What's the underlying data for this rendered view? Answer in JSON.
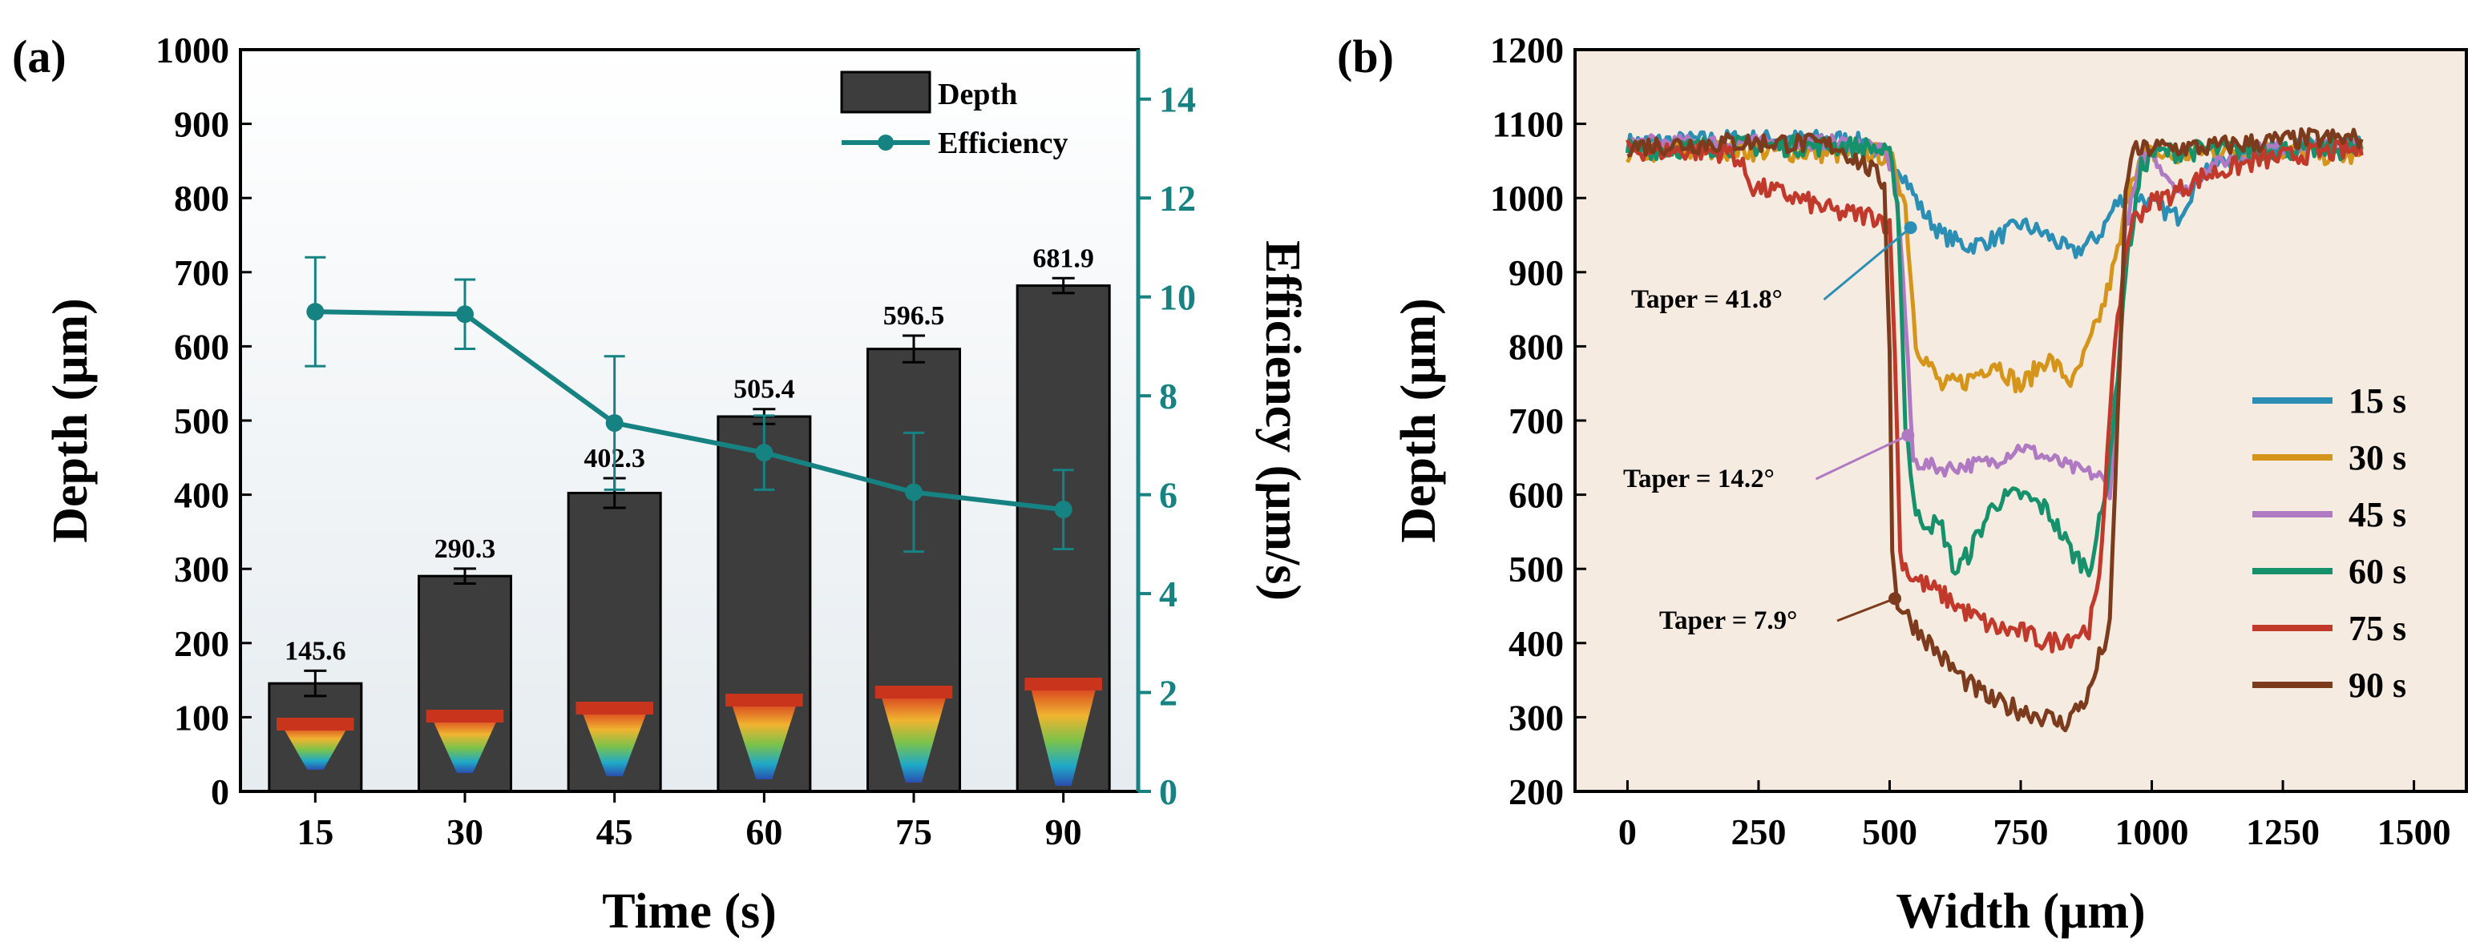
{
  "chart_data": [
    {
      "panel_label": "(a)",
      "type": "bar",
      "categories": [
        "15",
        "30",
        "45",
        "60",
        "75",
        "90"
      ],
      "series": [
        {
          "name": "Depth",
          "type": "bar",
          "axis": "left",
          "values": [
            145.6,
            290.3,
            402.3,
            505.4,
            596.5,
            681.9
          ],
          "errors": [
            17,
            10,
            20,
            10,
            18,
            10
          ],
          "value_labels": [
            "145.6",
            "290.3",
            "402.3",
            "505.4",
            "596.5",
            "681.9"
          ],
          "color": "#3d3d3d"
        },
        {
          "name": "Efficiency",
          "type": "line",
          "axis": "right",
          "values": [
            9.7,
            9.65,
            7.45,
            6.85,
            6.05,
            5.7
          ],
          "errors": [
            1.1,
            0.7,
            1.35,
            0.75,
            1.2,
            0.8
          ],
          "color": "#178282"
        }
      ],
      "xlabel": "Time (s)",
      "ylabel": "Depth (μm)",
      "y2label": "Efficiency (μm/s)",
      "ylim": [
        0,
        1000
      ],
      "y2lim": [
        0,
        15
      ],
      "yticks": [
        "0",
        "100",
        "200",
        "300",
        "400",
        "500",
        "600",
        "700",
        "800",
        "900",
        "1000"
      ],
      "y2ticks": [
        "0",
        "2",
        "4",
        "6",
        "8",
        "10",
        "12",
        "14"
      ],
      "legend": [
        "Depth",
        "Efficiency"
      ],
      "legend_position": "top-right"
    },
    {
      "panel_label": "(b)",
      "type": "line",
      "xlabel": "Width (μm)",
      "ylabel": "Depth (μm)",
      "xlim": [
        -100,
        1600
      ],
      "ylim": [
        200,
        1200
      ],
      "xticks": [
        "0",
        "250",
        "500",
        "750",
        "1000",
        "1250",
        "1500"
      ],
      "yticks": [
        "200",
        "300",
        "400",
        "500",
        "600",
        "700",
        "800",
        "900",
        "1000",
        "1100",
        "1200"
      ],
      "legend_position": "right",
      "series": [
        {
          "name": "15 s",
          "color": "#2b8fb5",
          "noise": 12,
          "bottom": 950,
          "x": [
            0,
            200,
            400,
            450,
            520,
            560,
            600,
            650,
            700,
            750,
            800,
            850,
            900,
            930,
            960,
            1000,
            1050,
            1100,
            1200,
            1300,
            1400
          ],
          "y": [
            1075,
            1080,
            1080,
            1075,
            1040,
            985,
            950,
            935,
            945,
            965,
            950,
            925,
            950,
            990,
            1010,
            990,
            975,
            1040,
            1065,
            1070,
            1070
          ]
        },
        {
          "name": "30 s",
          "color": "#d4951a",
          "noise": 14,
          "bottom": 760,
          "x": [
            0,
            200,
            400,
            480,
            510,
            530,
            550,
            600,
            650,
            700,
            750,
            800,
            850,
            880,
            910,
            940,
            960,
            990,
            1050,
            1100,
            1200,
            1300,
            1400
          ],
          "y": [
            1060,
            1065,
            1060,
            1060,
            1045,
            990,
            805,
            745,
            755,
            780,
            745,
            785,
            750,
            800,
            860,
            940,
            1030,
            1060,
            1055,
            1065,
            1065,
            1060,
            1055
          ]
        },
        {
          "name": "45 s",
          "color": "#b07ac2",
          "noise": 10,
          "bottom": 645,
          "x": [
            0,
            200,
            400,
            460,
            490,
            510,
            525,
            545,
            600,
            650,
            700,
            750,
            800,
            850,
            900,
            920,
            935,
            950,
            980,
            1000,
            1030,
            1060,
            1100,
            1200,
            1300,
            1400
          ],
          "y": [
            1075,
            1075,
            1075,
            1072,
            1060,
            1030,
            900,
            645,
            635,
            640,
            645,
            665,
            650,
            635,
            625,
            605,
            750,
            960,
            1050,
            1060,
            1030,
            1005,
            1040,
            1065,
            1070,
            1070
          ]
        },
        {
          "name": "60 s",
          "color": "#17916b",
          "noise": 14,
          "bottom": 540,
          "x": [
            0,
            200,
            400,
            470,
            500,
            515,
            530,
            550,
            600,
            625,
            650,
            700,
            750,
            800,
            850,
            880,
            910,
            930,
            950,
            980,
            1000,
            1100,
            1200,
            1300,
            1400
          ],
          "y": [
            1065,
            1070,
            1070,
            1068,
            1055,
            1000,
            700,
            570,
            555,
            495,
            520,
            590,
            600,
            580,
            520,
            500,
            590,
            720,
            900,
            1040,
            1060,
            1065,
            1065,
            1065,
            1065
          ]
        },
        {
          "name": "75 s",
          "color": "#c0392b",
          "noise": 14,
          "bottom": 410,
          "x": [
            0,
            200,
            220,
            240,
            300,
            400,
            480,
            500,
            510,
            520,
            540,
            600,
            650,
            700,
            750,
            800,
            850,
            880,
            900,
            920,
            945,
            960,
            990,
            1050,
            1100,
            1200,
            1300,
            1400
          ],
          "y": [
            1065,
            1062,
            1040,
            1015,
            1005,
            980,
            975,
            960,
            800,
            520,
            490,
            465,
            440,
            420,
            415,
            400,
            410,
            420,
            480,
            720,
            900,
            965,
            990,
            1010,
            1030,
            1050,
            1060,
            1065
          ]
        },
        {
          "name": "90 s",
          "color": "#7b3b1c",
          "noise": 14,
          "bottom": 300,
          "x": [
            0,
            200,
            300,
            400,
            460,
            490,
            500,
            505,
            515,
            540,
            600,
            650,
            700,
            750,
            800,
            830,
            850,
            880,
            900,
            920,
            935,
            950,
            960,
            1000,
            1100,
            1200,
            1300,
            1400
          ],
          "y": [
            1070,
            1075,
            1075,
            1070,
            1040,
            1020,
            800,
            520,
            455,
            430,
            380,
            345,
            320,
            310,
            300,
            290,
            305,
            330,
            380,
            420,
            700,
            1000,
            1060,
            1068,
            1068,
            1075,
            1080,
            1080
          ]
        }
      ],
      "annotations": [
        {
          "text": "Taper = 41.8°",
          "series": "15 s",
          "at": [
            540,
            960
          ]
        },
        {
          "text": "Taper = 14.2°",
          "series": "45 s",
          "at": [
            535,
            680
          ]
        },
        {
          "text": "Taper = 7.9°",
          "series": "90 s",
          "at": [
            510,
            460
          ]
        }
      ]
    }
  ]
}
